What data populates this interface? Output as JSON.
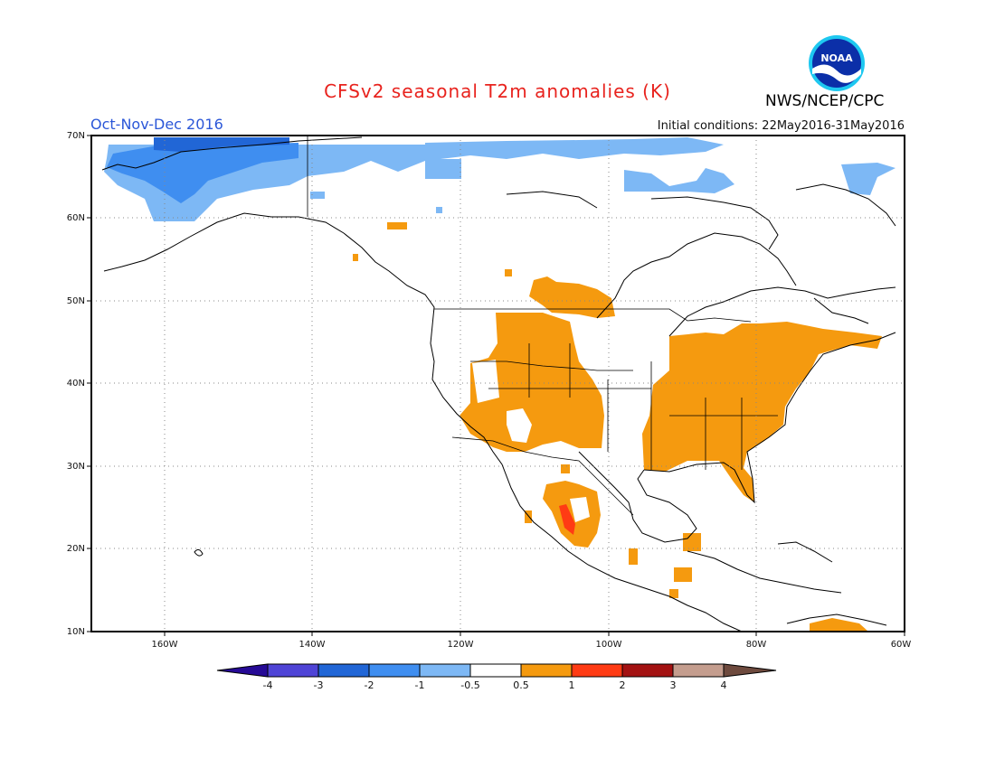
{
  "title": "CFSv2 seasonal T2m anomalies (K)",
  "season": "Oct-Nov-Dec 2016",
  "initial_conditions": "Initial conditions: 22May2016-31May2016",
  "agency": "NWS/NCEP/CPC",
  "logo_text": "NOAA",
  "colors": {
    "title": "#e8231e",
    "season": "#2b57d8",
    "land_outline": "#000000",
    "grid": "#888888"
  },
  "map": {
    "lat_ticks": [
      "70N",
      "60N",
      "50N",
      "40N",
      "30N",
      "20N",
      "10N"
    ],
    "lon_ticks": [
      "160W",
      "140W",
      "120W",
      "100W",
      "80W",
      "60W"
    ],
    "lon_range": [
      -170,
      -60
    ],
    "lat_range": [
      10,
      70
    ]
  },
  "colorbar": {
    "labels": [
      "-4",
      "-3",
      "-2",
      "-1",
      "-0.5",
      "0.5",
      "1",
      "2",
      "3",
      "4"
    ],
    "colors": [
      "#260a96",
      "#4f44d6",
      "#2166d6",
      "#3f8ef0",
      "#7db8f5",
      "#ffffff",
      "#f59a0f",
      "#ff3b14",
      "#a31212",
      "#c49d8e",
      "#6e4a3e"
    ]
  },
  "anomaly_regions": [
    {
      "level": "-2",
      "label": "Northern Alaska core"
    },
    {
      "level": "-1",
      "label": "Alaska / Arctic coast"
    },
    {
      "level": "-0.5",
      "label": "Canadian Arctic fringe"
    },
    {
      "level": "0.5",
      "label": "Western US / Great Basin"
    },
    {
      "level": "0.5",
      "label": "Northern Rockies / Prairies"
    },
    {
      "level": "0.5",
      "label": "Eastern US"
    },
    {
      "level": "0.5",
      "label": "Mexico"
    },
    {
      "level": "1",
      "label": "Western Mexico"
    }
  ]
}
